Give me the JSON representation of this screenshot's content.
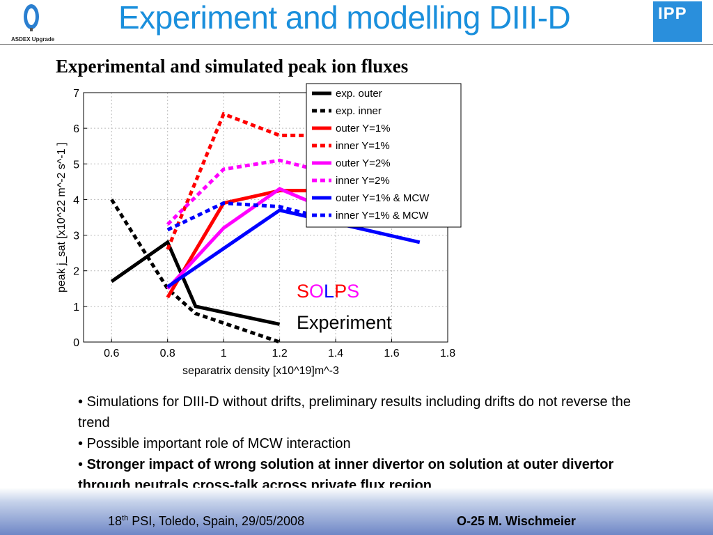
{
  "header": {
    "title": "Experiment and modelling DIII-D",
    "left_logo_caption": "ASDEX Upgrade",
    "right_logo_text": "IPP",
    "accent_color": "#1a8fdc"
  },
  "subtitle": "Experimental and simulated peak ion fluxes",
  "chart_data": {
    "type": "line",
    "xlabel": "separatrix density [x10^19]m^-3",
    "ylabel": "peak j_sat [x10^22 m^-2 s^-1 ]",
    "xlim": [
      0.5,
      1.8
    ],
    "ylim": [
      0,
      7
    ],
    "xticks": [
      "0.6",
      "0.8",
      "1",
      "1.2",
      "1.4",
      "1.6",
      "1.8"
    ],
    "yticks": [
      "0",
      "1",
      "2",
      "3",
      "4",
      "5",
      "6",
      "7"
    ],
    "grid": true,
    "legend_position": "top-right",
    "series": [
      {
        "name": "exp. outer",
        "color": "#000000",
        "dash": false,
        "x": [
          0.6,
          0.8,
          0.9,
          1.2
        ],
        "y": [
          1.7,
          2.8,
          1.0,
          0.5
        ]
      },
      {
        "name": "exp. inner",
        "color": "#000000",
        "dash": true,
        "x": [
          0.6,
          0.8,
          0.9,
          1.2
        ],
        "y": [
          4.0,
          1.5,
          0.8,
          0.0
        ]
      },
      {
        "name": "outer Y=1%",
        "color": "#ff0000",
        "dash": false,
        "x": [
          0.8,
          1.0,
          1.2,
          1.4
        ],
        "y": [
          1.25,
          3.9,
          4.25,
          4.25
        ]
      },
      {
        "name": "inner Y=1%",
        "color": "#ff0000",
        "dash": true,
        "x": [
          0.8,
          1.0,
          1.2,
          1.4
        ],
        "y": [
          2.6,
          6.4,
          5.8,
          5.8
        ]
      },
      {
        "name": "outer Y=2%",
        "color": "#ff00ff",
        "dash": false,
        "x": [
          0.8,
          1.0,
          1.2,
          1.35
        ],
        "y": [
          1.5,
          3.2,
          4.3,
          3.8
        ]
      },
      {
        "name": "inner Y=2%",
        "color": "#ff00ff",
        "dash": true,
        "x": [
          0.8,
          1.0,
          1.2,
          1.4
        ],
        "y": [
          3.3,
          4.85,
          5.1,
          4.7
        ]
      },
      {
        "name": "outer Y=1% & MCW",
        "color": "#0000ff",
        "dash": false,
        "x": [
          0.8,
          1.2,
          1.7
        ],
        "y": [
          1.55,
          3.7,
          2.8
        ]
      },
      {
        "name": "inner Y=1% & MCW",
        "color": "#0000ff",
        "dash": true,
        "x": [
          0.8,
          1.0,
          1.2,
          1.4
        ],
        "y": [
          3.15,
          3.9,
          3.8,
          3.4
        ]
      }
    ],
    "annotations": {
      "solps_letters": [
        {
          "text": "S",
          "color": "#ff0000"
        },
        {
          "text": "O",
          "color": "#ff00ff"
        },
        {
          "text": "L",
          "color": "#0000ff"
        },
        {
          "text": "P",
          "color": "#ff0000"
        },
        {
          "text": "S",
          "color": "#ff00ff"
        }
      ],
      "experiment": "Experiment"
    }
  },
  "bullets": [
    {
      "marker": "•",
      "text": " Simulations for DIII-D without drifts, preliminary results including drifts do not reverse the trend",
      "bold": false
    },
    {
      "marker": "•",
      "text": " Possible important role of MCW interaction",
      "bold": false
    },
    {
      "marker": "•",
      "text": " Stronger impact of wrong solution at inner divertor on solution at outer divertor through neutrals cross-talk across private flux region",
      "bold": true
    }
  ],
  "footer": {
    "num": "18",
    "sup": "th",
    "rest": " PSI, Toledo, Spain, 29/05/2008",
    "right": "O-25 M. Wischmeier"
  }
}
